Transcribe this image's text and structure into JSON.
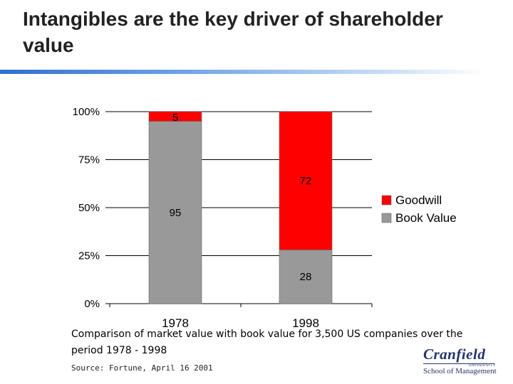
{
  "slide": {
    "title": "Intangibles are the key driver of shareholder value",
    "caption": "Comparison of market value with book value for 3,500 US companies over the period 1978 - 1998",
    "source": "Source: Fortune, April 16 2001"
  },
  "logo": {
    "name": "Cranfield",
    "university": "UNIVERSITY",
    "school": "School of Management",
    "color": "#23356b"
  },
  "chart_data": {
    "type": "bar",
    "stacked": true,
    "categories": [
      "1978",
      "1998"
    ],
    "series": [
      {
        "name": "Book Value",
        "values": [
          95,
          28
        ],
        "color": "#999999"
      },
      {
        "name": "Goodwill",
        "values": [
          5,
          72
        ],
        "color": "#ff0000"
      }
    ],
    "yticks": [
      "0%",
      "25%",
      "50%",
      "75%",
      "100%"
    ],
    "ylim": [
      0,
      100
    ],
    "grid": true,
    "legend": "right",
    "data_labels": true
  }
}
